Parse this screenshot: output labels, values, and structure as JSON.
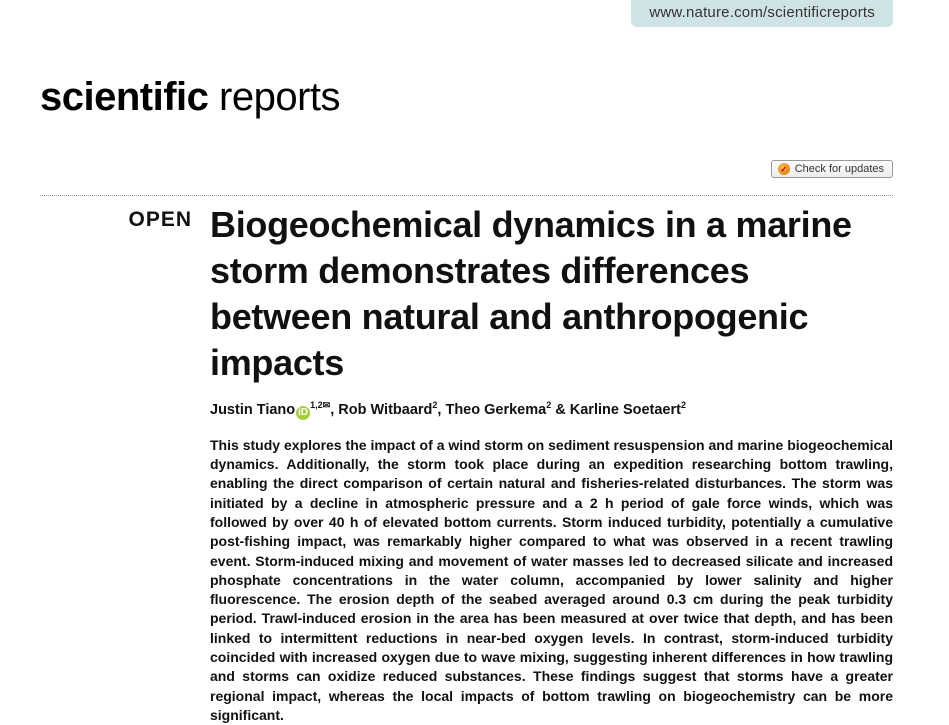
{
  "header": {
    "url": "www.nature.com/scientificreports",
    "journal_bold": "scientific",
    "journal_light": " reports",
    "url_bg": "#cfe3e6"
  },
  "badge": {
    "label": "Check for updates"
  },
  "open": {
    "label": "OPEN"
  },
  "article": {
    "title": "Biogeochemical dynamics in a marine storm demonstrates differences between natural and anthropogenic impacts",
    "authors": {
      "a1_name": "Justin Tiano",
      "a1_affil": "1,2",
      "a2": "Rob Witbaard",
      "a2_affil": "2",
      "a3": "Theo Gerkema",
      "a3_affil": "2",
      "a4": "Karline Soetaert",
      "a4_affil": "2"
    },
    "abstract": "This study explores the impact of a wind storm on sediment resuspension and marine biogeochemical dynamics. Additionally, the storm took place during an expedition researching bottom trawling, enabling the direct comparison of certain natural and fisheries-related disturbances. The storm was initiated by a decline in atmospheric pressure and a 2 h period of gale force winds, which was followed by over 40 h of elevated bottom currents. Storm induced turbidity, potentially a cumulative post-fishing impact, was remarkably higher compared to what was observed in a recent trawling event. Storm-induced mixing and movement of water masses led to decreased silicate and increased phosphate concentrations in the water column, accompanied by lower salinity and higher fluorescence. The erosion depth of the seabed averaged around 0.3 cm during the peak turbidity period. Trawl-induced erosion in the area has been measured at over twice that depth, and has been linked to intermittent reductions in near-bed oxygen levels. In contrast, storm-induced turbidity coincided with increased oxygen due to wave mixing, suggesting inherent differences in how trawling and storms can oxidize reduced substances. These findings suggest that storms have a greater regional impact, whereas the local impacts of bottom trawling on biogeochemistry can be more significant."
  },
  "colors": {
    "orcid": "#a6ce39",
    "text": "#111111"
  }
}
